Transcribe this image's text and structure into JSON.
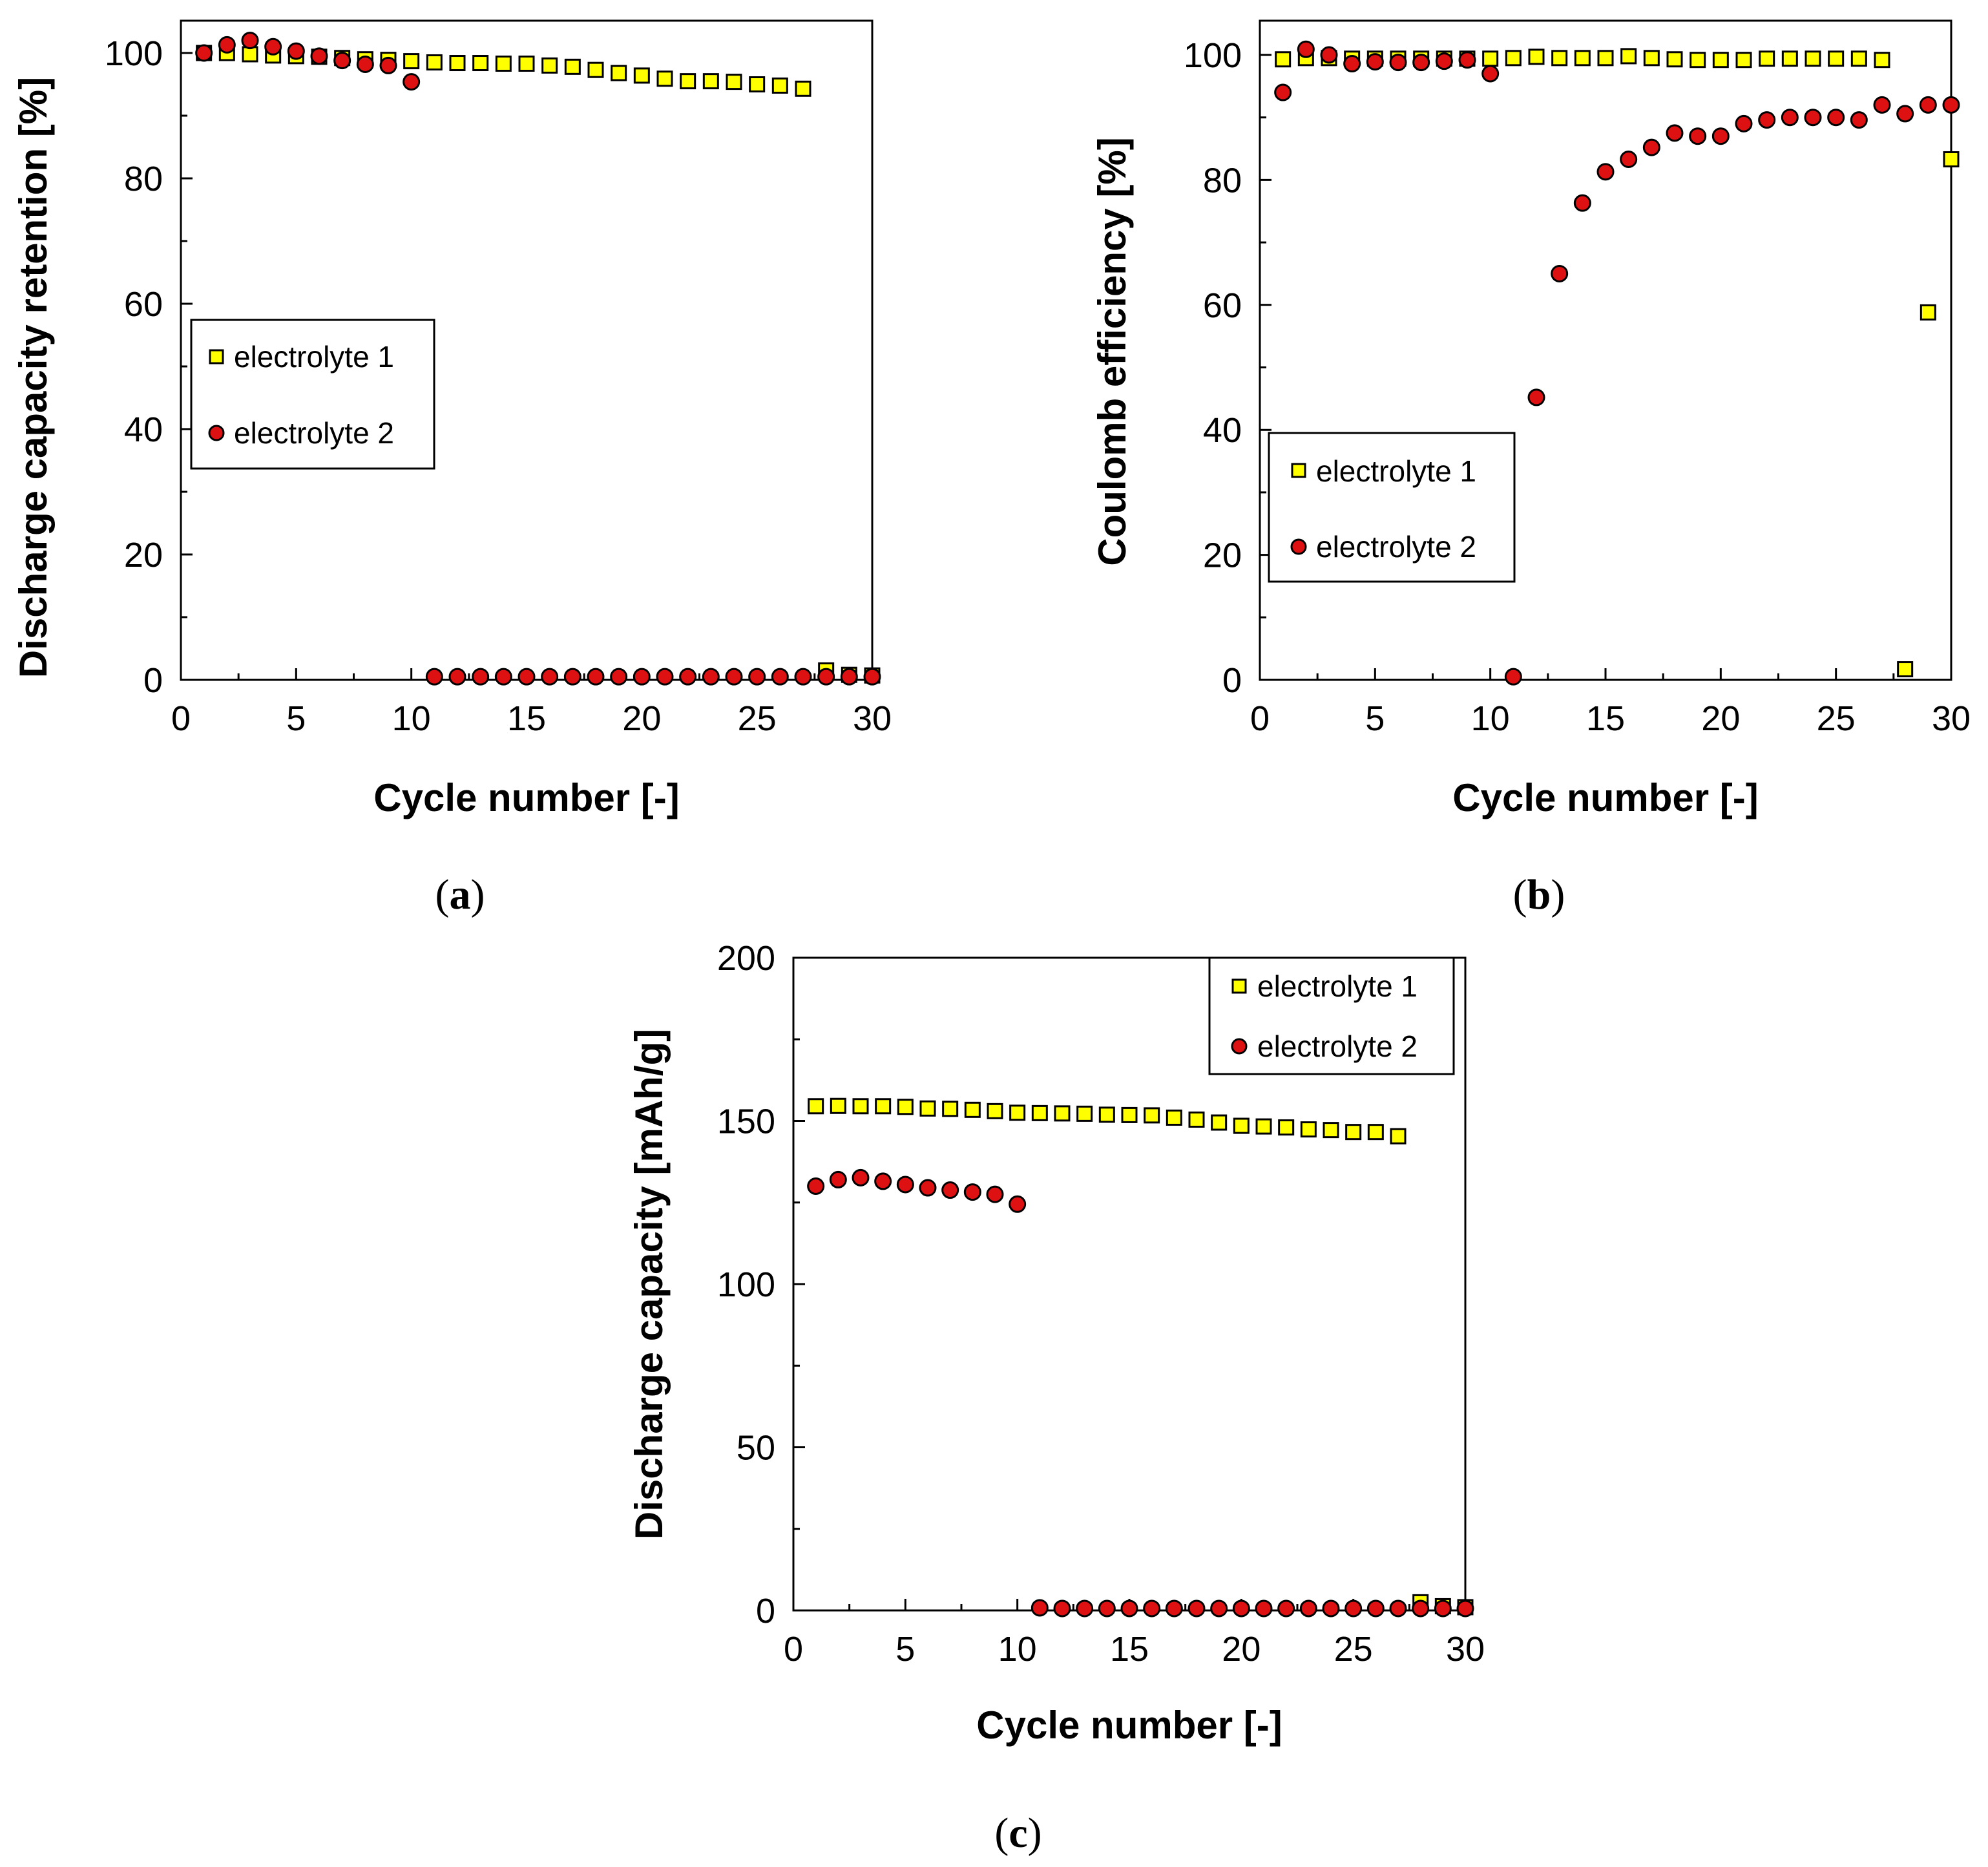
{
  "chart_data": [
    {
      "id": "a",
      "type": "scatter",
      "panel_label": "a",
      "xlabel": "Cycle number [-]",
      "ylabel": "Discharge capacity retention [%]",
      "xlim": [
        0,
        30
      ],
      "ylim": [
        0,
        100
      ],
      "xticks": [
        0,
        5,
        10,
        15,
        20,
        25,
        30
      ],
      "yticks": [
        0,
        20,
        40,
        60,
        80,
        100
      ],
      "legend_position": "center-left",
      "series": [
        {
          "name": "electrolyte 1",
          "marker": "square",
          "color": "#ffff00",
          "x": [
            1,
            2,
            3,
            4,
            5,
            6,
            7,
            8,
            9,
            10,
            11,
            12,
            13,
            14,
            15,
            16,
            17,
            18,
            19,
            20,
            21,
            22,
            23,
            24,
            25,
            26,
            27,
            28,
            29,
            30
          ],
          "y": [
            100,
            100,
            99.8,
            99.6,
            99.5,
            99.4,
            99.2,
            99.0,
            98.9,
            98.7,
            98.5,
            98.4,
            98.4,
            98.3,
            98.3,
            98.0,
            97.8,
            97.3,
            96.8,
            96.4,
            95.9,
            95.5,
            95.5,
            95.4,
            95.0,
            94.8,
            94.3,
            1.5,
            0.8,
            0.7
          ]
        },
        {
          "name": "electrolyte 2",
          "marker": "circle",
          "color": "#dd1111",
          "x": [
            1,
            2,
            3,
            4,
            5,
            6,
            7,
            8,
            9,
            10,
            11,
            12,
            13,
            14,
            15,
            16,
            17,
            18,
            19,
            20,
            21,
            22,
            23,
            24,
            25,
            26,
            27,
            28,
            29,
            30
          ],
          "y": [
            100,
            101.3,
            102,
            101,
            100.3,
            99.5,
            98.8,
            98.2,
            98.0,
            95.4,
            0.5,
            0.5,
            0.5,
            0.5,
            0.5,
            0.5,
            0.5,
            0.5,
            0.5,
            0.5,
            0.5,
            0.5,
            0.5,
            0.5,
            0.5,
            0.5,
            0.5,
            0.5,
            0.5,
            0.5
          ]
        }
      ]
    },
    {
      "id": "b",
      "type": "scatter",
      "panel_label": "b",
      "xlabel": "Cycle number [-]",
      "ylabel": "Coulomb efficiency [%]",
      "xlim": [
        0,
        30
      ],
      "ylim": [
        0,
        100
      ],
      "xticks": [
        0,
        5,
        10,
        15,
        20,
        25,
        30
      ],
      "yticks": [
        0,
        20,
        40,
        60,
        80,
        100
      ],
      "legend_position": "lower-left",
      "series": [
        {
          "name": "electrolyte 1",
          "marker": "square",
          "color": "#ffff00",
          "x": [
            1,
            2,
            3,
            4,
            5,
            6,
            7,
            8,
            9,
            10,
            11,
            12,
            13,
            14,
            15,
            16,
            17,
            18,
            19,
            20,
            21,
            22,
            23,
            24,
            25,
            26,
            27,
            28,
            29,
            30
          ],
          "y": [
            99.3,
            99.5,
            99.5,
            99.4,
            99.4,
            99.4,
            99.4,
            99.4,
            99.4,
            99.4,
            99.5,
            99.7,
            99.5,
            99.5,
            99.5,
            99.8,
            99.5,
            99.3,
            99.2,
            99.2,
            99.2,
            99.4,
            99.4,
            99.4,
            99.4,
            99.4,
            99.2,
            1.7,
            58.8,
            83.3
          ]
        },
        {
          "name": "electrolyte 2",
          "marker": "circle",
          "color": "#dd1111",
          "x": [
            1,
            2,
            3,
            4,
            5,
            6,
            7,
            8,
            9,
            10,
            11,
            12,
            13,
            14,
            15,
            16,
            17,
            18,
            19,
            20,
            21,
            22,
            23,
            24,
            25,
            26,
            27,
            28,
            29,
            30
          ],
          "y": [
            94.0,
            100.9,
            100.0,
            98.6,
            98.9,
            98.8,
            98.8,
            99.0,
            99.2,
            97.0,
            0.5,
            45.2,
            65.0,
            76.3,
            81.3,
            83.3,
            85.2,
            87.5,
            87.0,
            87.0,
            89.0,
            89.6,
            90.0,
            90.0,
            90.0,
            89.6,
            92.0,
            90.6,
            92.0,
            92.0
          ]
        }
      ]
    },
    {
      "id": "c",
      "type": "scatter",
      "panel_label": "c",
      "xlabel": "Cycle number [-]",
      "ylabel": "Discharge capacity [mAh/g]",
      "xlim": [
        0,
        30
      ],
      "ylim": [
        0,
        200
      ],
      "xticks": [
        0,
        5,
        10,
        15,
        20,
        25,
        30
      ],
      "yticks": [
        0,
        50,
        100,
        150,
        200
      ],
      "legend_position": "top-right",
      "series": [
        {
          "name": "electrolyte 1",
          "marker": "square",
          "color": "#ffff00",
          "x": [
            1,
            2,
            3,
            4,
            5,
            6,
            7,
            8,
            9,
            10,
            11,
            12,
            13,
            14,
            15,
            16,
            17,
            18,
            19,
            20,
            21,
            22,
            23,
            24,
            25,
            26,
            27,
            28,
            29,
            30
          ],
          "y": [
            154.5,
            154.6,
            154.5,
            154.5,
            154.3,
            153.8,
            153.7,
            153.4,
            153.0,
            152.5,
            152.4,
            152.3,
            152.2,
            151.9,
            151.8,
            151.7,
            151.0,
            150.4,
            149.5,
            148.5,
            148.3,
            148.0,
            147.4,
            147.2,
            146.6,
            146.6,
            145.3,
            2.5,
            1.3,
            1.0
          ]
        },
        {
          "name": "electrolyte 2",
          "marker": "circle",
          "color": "#dd1111",
          "x": [
            1,
            2,
            3,
            4,
            5,
            6,
            7,
            8,
            9,
            10,
            11,
            12,
            13,
            14,
            15,
            16,
            17,
            18,
            19,
            20,
            21,
            22,
            23,
            24,
            25,
            26,
            27,
            28,
            29,
            30
          ],
          "y": [
            130.0,
            132.0,
            132.6,
            131.5,
            130.5,
            129.5,
            128.8,
            128.2,
            127.5,
            124.5,
            0.8,
            0.6,
            0.6,
            0.6,
            0.6,
            0.6,
            0.6,
            0.6,
            0.6,
            0.6,
            0.6,
            0.6,
            0.6,
            0.6,
            0.6,
            0.6,
            0.6,
            0.6,
            0.6,
            0.6
          ]
        }
      ]
    }
  ]
}
